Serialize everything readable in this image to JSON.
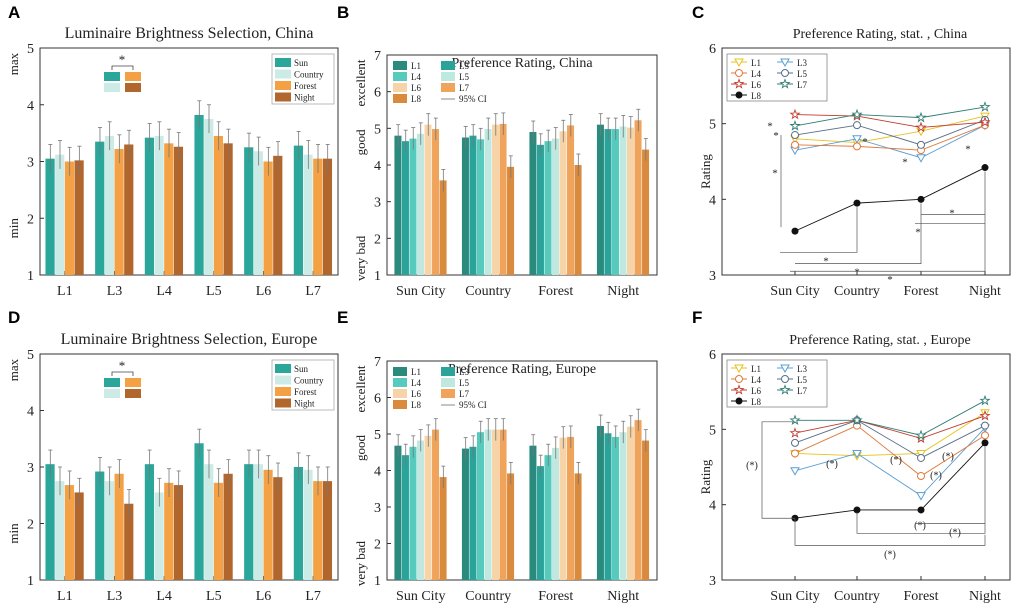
{
  "figure": {
    "colors": {
      "sun": "#2aa69a",
      "country": "#cdebe6",
      "forest": "#f4a145",
      "night": "#b0662c",
      "L1": "#2a8a7e",
      "L3": "#2aa39a",
      "L4": "#56cabd",
      "L5": "#bfe8e1",
      "L6": "#f7d4a8",
      "L7": "#f0a35a",
      "L8": "#d98a3d",
      "line_L1": "#e8c21a",
      "line_L3": "#5a9fd4",
      "line_L4": "#e0783b",
      "line_L5": "#5a6f8a",
      "line_L6": "#c0392b",
      "line_L7": "#2e7d74",
      "line_L8": "#111111"
    }
  },
  "chart_data": [
    {
      "panel": "A",
      "type": "bar",
      "title": "Luminaire Brightness Selection, China",
      "categories": [
        "L1",
        "L3",
        "L4",
        "L5",
        "L6",
        "L7"
      ],
      "ylim": [
        1,
        5
      ],
      "yticks": [
        "1",
        "2",
        "3",
        "4",
        "5"
      ],
      "ylabels": {
        "max": "max",
        "min": "min"
      },
      "legend": [
        "Sun",
        "Country",
        "Forest",
        "Night"
      ],
      "significance": "*",
      "series": [
        {
          "name": "Sun",
          "values": [
            3.05,
            3.35,
            3.42,
            3.82,
            3.25,
            3.28
          ]
        },
        {
          "name": "Country",
          "values": [
            3.12,
            3.45,
            3.45,
            3.75,
            3.18,
            3.12
          ]
        },
        {
          "name": "Forest",
          "values": [
            3.0,
            3.22,
            3.32,
            3.45,
            3.0,
            3.05
          ]
        },
        {
          "name": "Night",
          "values": [
            3.02,
            3.3,
            3.26,
            3.32,
            3.1,
            3.05
          ]
        }
      ],
      "errors": 0.25
    },
    {
      "panel": "B",
      "type": "bar",
      "title": "Preference Rating, China",
      "categories": [
        "Sun City",
        "Country",
        "Forest",
        "Night"
      ],
      "ylim": [
        1,
        7
      ],
      "yticks": [
        "1",
        "2",
        "3",
        "4",
        "5",
        "6",
        "7"
      ],
      "ylabels": {
        "excellent": "excellent",
        "good": "good",
        "very_bad": "very bad"
      },
      "legend": [
        "L1",
        "L3",
        "L4",
        "L5",
        "L6",
        "L7",
        "L8",
        "95% CI"
      ],
      "series": [
        {
          "name": "L1",
          "values": [
            4.8,
            4.75,
            4.9,
            5.1
          ]
        },
        {
          "name": "L3",
          "values": [
            4.65,
            4.8,
            4.55,
            4.98
          ]
        },
        {
          "name": "L4",
          "values": [
            4.72,
            4.7,
            4.65,
            4.98
          ]
        },
        {
          "name": "L5",
          "values": [
            4.85,
            4.98,
            4.72,
            5.05
          ]
        },
        {
          "name": "L6",
          "values": [
            5.1,
            5.1,
            4.92,
            5.02
          ]
        },
        {
          "name": "L7",
          "values": [
            4.98,
            5.12,
            5.08,
            5.22
          ]
        },
        {
          "name": "L8",
          "values": [
            3.58,
            3.95,
            4.0,
            4.42
          ]
        }
      ],
      "errors": 0.3
    },
    {
      "panel": "C",
      "type": "line",
      "title": "Preference Rating, stat. , China",
      "categories": [
        "Sun City",
        "Country",
        "Forest",
        "Night"
      ],
      "ylim": [
        3,
        6
      ],
      "yticks": [
        "3",
        "4",
        "5",
        "6"
      ],
      "ylabel": "Rating",
      "legend": [
        "L1",
        "L3",
        "L4",
        "L5",
        "L6",
        "L7",
        "L8"
      ],
      "significance": "*",
      "series": [
        {
          "name": "L1",
          "values": [
            4.8,
            4.75,
            4.9,
            5.1
          ]
        },
        {
          "name": "L3",
          "values": [
            4.65,
            4.8,
            4.55,
            4.98
          ]
        },
        {
          "name": "L4",
          "values": [
            4.72,
            4.7,
            4.65,
            4.98
          ]
        },
        {
          "name": "L5",
          "values": [
            4.85,
            4.98,
            4.72,
            5.05
          ]
        },
        {
          "name": "L6",
          "values": [
            5.12,
            5.1,
            4.95,
            5.02
          ]
        },
        {
          "name": "L7",
          "values": [
            4.97,
            5.12,
            5.08,
            5.22
          ]
        },
        {
          "name": "L8",
          "values": [
            3.58,
            3.95,
            4.0,
            4.42
          ]
        }
      ]
    },
    {
      "panel": "D",
      "type": "bar",
      "title": "Luminaire Brightness Selection, Europe",
      "categories": [
        "L1",
        "L3",
        "L4",
        "L5",
        "L6",
        "L7"
      ],
      "ylim": [
        1,
        5
      ],
      "yticks": [
        "1",
        "2",
        "3",
        "4",
        "5"
      ],
      "ylabels": {
        "max": "max",
        "min": "min"
      },
      "legend": [
        "Sun",
        "Country",
        "Forest",
        "Night"
      ],
      "significance": "*",
      "series": [
        {
          "name": "Sun",
          "values": [
            3.05,
            2.92,
            3.05,
            3.42,
            3.05,
            3.0
          ]
        },
        {
          "name": "Country",
          "values": [
            2.75,
            2.75,
            2.55,
            3.05,
            3.05,
            2.95
          ]
        },
        {
          "name": "Forest",
          "values": [
            2.68,
            2.88,
            2.72,
            2.72,
            2.95,
            2.75
          ]
        },
        {
          "name": "Night",
          "values": [
            2.55,
            2.35,
            2.68,
            2.88,
            2.82,
            2.75
          ]
        }
      ],
      "errors": 0.25
    },
    {
      "panel": "E",
      "type": "bar",
      "title": "Preference Rating, Europe",
      "categories": [
        "Sun City",
        "Country",
        "Forest",
        "Night"
      ],
      "ylim": [
        1,
        7
      ],
      "yticks": [
        "1",
        "2",
        "3",
        "4",
        "5",
        "6",
        "7"
      ],
      "ylabels": {
        "excellent": "excellent",
        "good": "good",
        "very_bad": "very bad"
      },
      "legend": [
        "L1",
        "L3",
        "L4",
        "L5",
        "L6",
        "L7",
        "L8",
        "95% CI"
      ],
      "series": [
        {
          "name": "L1",
          "values": [
            4.68,
            4.6,
            4.68,
            5.22
          ]
        },
        {
          "name": "L3",
          "values": [
            4.42,
            4.65,
            4.12,
            5.02
          ]
        },
        {
          "name": "L4",
          "values": [
            4.65,
            5.05,
            4.42,
            4.92
          ]
        },
        {
          "name": "L5",
          "values": [
            4.82,
            5.12,
            4.62,
            5.05
          ]
        },
        {
          "name": "L6",
          "values": [
            4.95,
            5.12,
            4.9,
            5.2
          ]
        },
        {
          "name": "L7",
          "values": [
            5.12,
            5.12,
            4.92,
            5.38
          ]
        },
        {
          "name": "L8",
          "values": [
            3.82,
            3.92,
            3.92,
            4.82
          ]
        }
      ],
      "errors": 0.3
    },
    {
      "panel": "F",
      "type": "line",
      "title": "Preference Rating, stat. , Europe",
      "categories": [
        "Sun City",
        "Country",
        "Forest",
        "Night"
      ],
      "ylim": [
        3,
        6
      ],
      "yticks": [
        "3",
        "4",
        "5",
        "6"
      ],
      "ylabel": "Rating",
      "legend": [
        "L1",
        "L3",
        "L4",
        "L5",
        "L6",
        "L7",
        "L8"
      ],
      "significance": "(*)",
      "series": [
        {
          "name": "L1",
          "values": [
            4.68,
            4.65,
            4.68,
            5.22
          ]
        },
        {
          "name": "L3",
          "values": [
            4.45,
            4.68,
            4.12,
            5.02
          ]
        },
        {
          "name": "L4",
          "values": [
            4.68,
            5.05,
            4.38,
            4.92
          ]
        },
        {
          "name": "L5",
          "values": [
            4.82,
            5.12,
            4.62,
            5.05
          ]
        },
        {
          "name": "L6",
          "values": [
            4.95,
            5.12,
            4.88,
            5.18
          ]
        },
        {
          "name": "L7",
          "values": [
            5.12,
            5.12,
            4.92,
            5.38
          ]
        },
        {
          "name": "L8",
          "values": [
            3.82,
            3.93,
            3.93,
            4.82
          ]
        }
      ]
    }
  ]
}
